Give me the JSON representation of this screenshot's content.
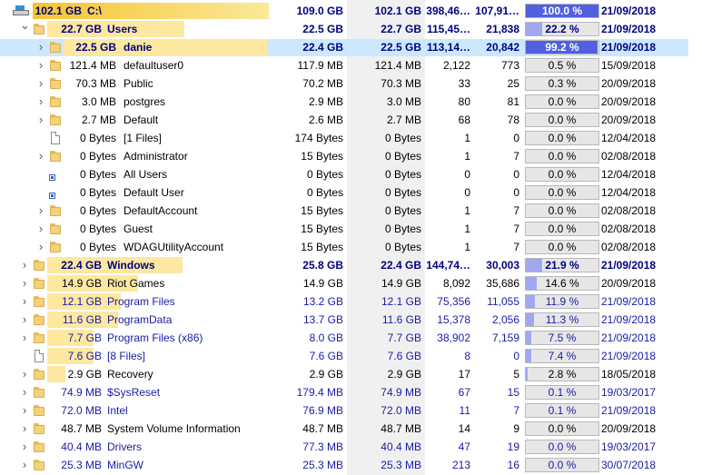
{
  "colors": {
    "blue_text": "#1a1aa6",
    "navy_text": "#000080",
    "size_bar": "#fde8a0",
    "size_bar_root": "#f7c93b",
    "pct_fill": "#9fa8f0",
    "pct_fill_strong": "#5060e0",
    "selection": "#cce8ff"
  },
  "rows": [
    {
      "expander": "collapse",
      "icon": "drive",
      "size": "102.1 GB",
      "name": "C:\\",
      "bytes": "109.0 GB",
      "alloc": "102.1 GB",
      "files": "398,46…",
      "folders": "107,91…",
      "pct_label": "100.0 %",
      "pct": 1.0,
      "date": "21/09/2018",
      "bold": true,
      "style": "navy",
      "bar": 1.0,
      "indent": 1
    },
    {
      "expander": "collapse",
      "icon": "folder",
      "size": "22.7 GB",
      "name": "Users",
      "bytes": "22.5 GB",
      "alloc": "22.7 GB",
      "files": "115,45…",
      "folders": "21,838",
      "pct_label": "22.2 %",
      "pct": 0.222,
      "date": "21/09/2018",
      "bold": true,
      "style": "navy",
      "bar": 0.62,
      "indent": 2
    },
    {
      "expander": "expand",
      "icon": "folder",
      "size": "22.5 GB",
      "name": "danie",
      "bytes": "22.4 GB",
      "alloc": "22.5 GB",
      "files": "113,14…",
      "folders": "20,842",
      "pct_label": "99.2 %",
      "pct": 0.992,
      "date": "21/09/2018",
      "bold": true,
      "style": "navy",
      "bar": 0.99,
      "indent": 3,
      "selected": true
    },
    {
      "expander": "expand",
      "icon": "folder",
      "size": "121.4 MB",
      "name": "defaultuser0",
      "bytes": "117.9 MB",
      "alloc": "121.4 MB",
      "files": "2,122",
      "folders": "773",
      "pct_label": "0.5 %",
      "pct": 0.005,
      "date": "15/09/2018",
      "style": "plain",
      "bar": 0.0,
      "indent": 3
    },
    {
      "expander": "expand",
      "icon": "folder",
      "size": "70.3 MB",
      "name": "Public",
      "bytes": "70.2 MB",
      "alloc": "70.3 MB",
      "files": "33",
      "folders": "25",
      "pct_label": "0.3 %",
      "pct": 0.003,
      "date": "20/09/2018",
      "style": "plain",
      "bar": 0.0,
      "indent": 3
    },
    {
      "expander": "expand",
      "icon": "folder",
      "size": "3.0 MB",
      "name": "postgres",
      "bytes": "2.9 MB",
      "alloc": "3.0 MB",
      "files": "80",
      "folders": "81",
      "pct_label": "0.0 %",
      "pct": 0.0,
      "date": "20/09/2018",
      "style": "plain",
      "bar": 0.0,
      "indent": 3
    },
    {
      "expander": "expand",
      "icon": "folder",
      "size": "2.7 MB",
      "name": "Default",
      "bytes": "2.6 MB",
      "alloc": "2.7 MB",
      "files": "68",
      "folders": "78",
      "pct_label": "0.0 %",
      "pct": 0.0,
      "date": "20/09/2018",
      "style": "plain",
      "bar": 0.0,
      "indent": 3
    },
    {
      "expander": "none",
      "icon": "file",
      "size": "0 Bytes",
      "name": "[1 Files]",
      "bytes": "174 Bytes",
      "alloc": "0 Bytes",
      "files": "1",
      "folders": "0",
      "pct_label": "0.0 %",
      "pct": 0.0,
      "date": "12/04/2018",
      "style": "plain",
      "bar": 0.0,
      "indent": 3
    },
    {
      "expander": "expand",
      "icon": "folder",
      "size": "0 Bytes",
      "name": "Administrator",
      "bytes": "15 Bytes",
      "alloc": "0 Bytes",
      "files": "1",
      "folders": "7",
      "pct_label": "0.0 %",
      "pct": 0.0,
      "date": "02/08/2018",
      "style": "plain",
      "bar": 0.0,
      "indent": 3
    },
    {
      "expander": "none",
      "icon": "link",
      "size": "0 Bytes",
      "name": "All Users",
      "bytes": "0 Bytes",
      "alloc": "0 Bytes",
      "files": "0",
      "folders": "0",
      "pct_label": "0.0 %",
      "pct": 0.0,
      "date": "12/04/2018",
      "style": "plain",
      "bar": 0.0,
      "indent": 3
    },
    {
      "expander": "none",
      "icon": "link",
      "size": "0 Bytes",
      "name": "Default User",
      "bytes": "0 Bytes",
      "alloc": "0 Bytes",
      "files": "0",
      "folders": "0",
      "pct_label": "0.0 %",
      "pct": 0.0,
      "date": "12/04/2018",
      "style": "plain",
      "bar": 0.0,
      "indent": 3
    },
    {
      "expander": "expand",
      "icon": "folder",
      "size": "0 Bytes",
      "name": "DefaultAccount",
      "bytes": "15 Bytes",
      "alloc": "0 Bytes",
      "files": "1",
      "folders": "7",
      "pct_label": "0.0 %",
      "pct": 0.0,
      "date": "02/08/2018",
      "style": "plain",
      "bar": 0.0,
      "indent": 3
    },
    {
      "expander": "expand",
      "icon": "folder",
      "size": "0 Bytes",
      "name": "Guest",
      "bytes": "15 Bytes",
      "alloc": "0 Bytes",
      "files": "1",
      "folders": "7",
      "pct_label": "0.0 %",
      "pct": 0.0,
      "date": "02/08/2018",
      "style": "plain",
      "bar": 0.0,
      "indent": 3
    },
    {
      "expander": "expand",
      "icon": "folder",
      "size": "0 Bytes",
      "name": "WDAGUtilityAccount",
      "bytes": "15 Bytes",
      "alloc": "0 Bytes",
      "files": "1",
      "folders": "7",
      "pct_label": "0.0 %",
      "pct": 0.0,
      "date": "02/08/2018",
      "style": "plain",
      "bar": 0.0,
      "indent": 3
    },
    {
      "expander": "expand",
      "icon": "folder",
      "size": "22.4 GB",
      "name": "Windows",
      "bytes": "25.8 GB",
      "alloc": "22.4 GB",
      "files": "144,74…",
      "folders": "30,003",
      "pct_label": "21.9 %",
      "pct": 0.219,
      "date": "21/09/2018",
      "bold": true,
      "style": "navy",
      "bar": 0.61,
      "indent": 2
    },
    {
      "expander": "expand",
      "icon": "folder",
      "size": "14.9 GB",
      "name": "Riot Games",
      "bytes": "14.9 GB",
      "alloc": "14.9 GB",
      "files": "8,092",
      "folders": "35,686",
      "pct_label": "14.6 %",
      "pct": 0.146,
      "date": "20/09/2018",
      "style": "plain",
      "bar": 0.41,
      "indent": 2
    },
    {
      "expander": "expand",
      "icon": "folder",
      "size": "12.1 GB",
      "name": "Program Files",
      "bytes": "13.2 GB",
      "alloc": "12.1 GB",
      "files": "75,356",
      "folders": "11,055",
      "pct_label": "11.9 %",
      "pct": 0.119,
      "date": "21/09/2018",
      "style": "blue",
      "bar": 0.33,
      "indent": 2
    },
    {
      "expander": "expand",
      "icon": "folder",
      "size": "11.6 GB",
      "name": "ProgramData",
      "bytes": "13.7 GB",
      "alloc": "11.6 GB",
      "files": "15,378",
      "folders": "2,056",
      "pct_label": "11.3 %",
      "pct": 0.113,
      "date": "21/09/2018",
      "style": "blue",
      "bar": 0.32,
      "indent": 2
    },
    {
      "expander": "expand",
      "icon": "folder",
      "size": "7.7 GB",
      "name": "Program Files (x86)",
      "bytes": "8.0 GB",
      "alloc": "7.7 GB",
      "files": "38,902",
      "folders": "7,159",
      "pct_label": "7.5 %",
      "pct": 0.075,
      "date": "21/09/2018",
      "style": "blue",
      "bar": 0.21,
      "indent": 2
    },
    {
      "expander": "none",
      "icon": "file",
      "size": "7.6 GB",
      "name": "[8 Files]",
      "bytes": "7.6 GB",
      "alloc": "7.6 GB",
      "files": "8",
      "folders": "0",
      "pct_label": "7.4 %",
      "pct": 0.074,
      "date": "21/09/2018",
      "style": "blue",
      "bar": 0.21,
      "indent": 2
    },
    {
      "expander": "expand",
      "icon": "folder",
      "size": "2.9 GB",
      "name": "Recovery",
      "bytes": "2.9 GB",
      "alloc": "2.9 GB",
      "files": "17",
      "folders": "5",
      "pct_label": "2.8 %",
      "pct": 0.028,
      "date": "18/05/2018",
      "style": "plain",
      "bar": 0.08,
      "indent": 2
    },
    {
      "expander": "expand",
      "icon": "folder",
      "size": "74.9 MB",
      "name": "$SysReset",
      "bytes": "179.4 MB",
      "alloc": "74.9 MB",
      "files": "67",
      "folders": "15",
      "pct_label": "0.1 %",
      "pct": 0.001,
      "date": "19/03/2017",
      "style": "blue",
      "bar": 0.0,
      "indent": 2
    },
    {
      "expander": "expand",
      "icon": "folder",
      "size": "72.0 MB",
      "name": "Intel",
      "bytes": "76.9 MB",
      "alloc": "72.0 MB",
      "files": "11",
      "folders": "7",
      "pct_label": "0.1 %",
      "pct": 0.001,
      "date": "21/09/2018",
      "style": "blue",
      "bar": 0.0,
      "indent": 2
    },
    {
      "expander": "expand",
      "icon": "folder",
      "size": "48.7 MB",
      "name": "System Volume Information",
      "bytes": "48.7 MB",
      "alloc": "48.7 MB",
      "files": "14",
      "folders": "9",
      "pct_label": "0.0 %",
      "pct": 0.0,
      "date": "20/09/2018",
      "style": "plain",
      "bar": 0.0,
      "indent": 2
    },
    {
      "expander": "expand",
      "icon": "folder",
      "size": "40.4 MB",
      "name": "Drivers",
      "bytes": "77.3 MB",
      "alloc": "40.4 MB",
      "files": "47",
      "folders": "19",
      "pct_label": "0.0 %",
      "pct": 0.0,
      "date": "19/03/2017",
      "style": "blue",
      "bar": 0.0,
      "indent": 2
    },
    {
      "expander": "expand",
      "icon": "folder",
      "size": "25.3 MB",
      "name": "MinGW",
      "bytes": "25.3 MB",
      "alloc": "25.3 MB",
      "files": "213",
      "folders": "16",
      "pct_label": "0.0 %",
      "pct": 0.0,
      "date": "30/07/2018",
      "style": "blue",
      "bar": 0.0,
      "indent": 2
    }
  ]
}
